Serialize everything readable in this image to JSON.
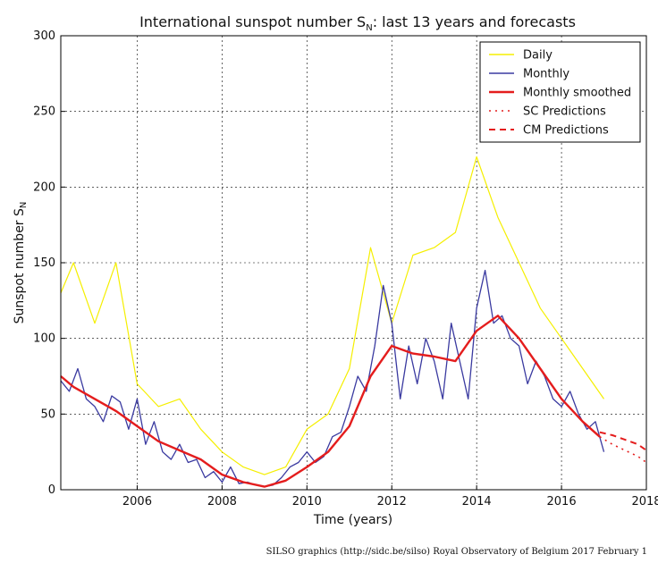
{
  "chart_data": {
    "type": "line",
    "title": "International sunspot number S",
    "title_subscript": "N",
    "title_suffix": ": last 13 years and forecasts",
    "xlabel": "Time (years)",
    "ylabel": "Sunspot number S",
    "ylabel_subscript": "N",
    "xlim": [
      2004.2,
      2018.0
    ],
    "ylim": [
      0,
      300
    ],
    "xticks": [
      2006,
      2008,
      2010,
      2012,
      2014,
      2016,
      2018
    ],
    "yticks": [
      0,
      50,
      100,
      150,
      200,
      250,
      300
    ],
    "legend_position": "top-right",
    "grid": true,
    "series": [
      {
        "name": "Daily",
        "color": "#f5ef00",
        "style": "solid",
        "x": [
          2004.2,
          2004.5,
          2005.0,
          2005.5,
          2006.0,
          2006.5,
          2007.0,
          2007.5,
          2008.0,
          2008.5,
          2009.0,
          2009.5,
          2010.0,
          2010.5,
          2011.0,
          2011.5,
          2012.0,
          2012.5,
          2013.0,
          2013.5,
          2014.0,
          2014.5,
          2015.0,
          2015.5,
          2016.0,
          2016.5,
          2017.0
        ],
        "values": [
          130,
          150,
          110,
          150,
          70,
          55,
          60,
          40,
          25,
          15,
          10,
          15,
          40,
          50,
          80,
          160,
          110,
          155,
          160,
          170,
          220,
          180,
          150,
          120,
          100,
          80,
          60
        ]
      },
      {
        "name": "Monthly",
        "color": "#3a3aa0",
        "style": "solid",
        "x": [
          2004.2,
          2004.4,
          2004.6,
          2004.8,
          2005.0,
          2005.2,
          2005.4,
          2005.6,
          2005.8,
          2006.0,
          2006.2,
          2006.4,
          2006.6,
          2006.8,
          2007.0,
          2007.2,
          2007.4,
          2007.6,
          2007.8,
          2008.0,
          2008.2,
          2008.4,
          2008.6,
          2008.8,
          2009.0,
          2009.2,
          2009.4,
          2009.6,
          2009.8,
          2010.0,
          2010.2,
          2010.4,
          2010.6,
          2010.8,
          2011.0,
          2011.2,
          2011.4,
          2011.6,
          2011.8,
          2012.0,
          2012.2,
          2012.4,
          2012.6,
          2012.8,
          2013.0,
          2013.2,
          2013.4,
          2013.6,
          2013.8,
          2014.0,
          2014.2,
          2014.4,
          2014.6,
          2014.8,
          2015.0,
          2015.2,
          2015.4,
          2015.6,
          2015.8,
          2016.0,
          2016.2,
          2016.4,
          2016.6,
          2016.8,
          2017.0
        ],
        "values": [
          72,
          65,
          80,
          60,
          55,
          45,
          62,
          58,
          40,
          60,
          30,
          45,
          25,
          20,
          30,
          18,
          20,
          8,
          12,
          5,
          15,
          4,
          5,
          3,
          2,
          3,
          8,
          15,
          18,
          25,
          18,
          22,
          35,
          38,
          55,
          75,
          65,
          95,
          135,
          110,
          60,
          95,
          70,
          100,
          85,
          60,
          110,
          85,
          60,
          120,
          145,
          110,
          115,
          100,
          95,
          70,
          85,
          75,
          60,
          55,
          65,
          50,
          40,
          45,
          25
        ]
      },
      {
        "name": "Monthly smoothed",
        "color": "#e41d1d",
        "style": "solid",
        "x": [
          2004.2,
          2004.5,
          2005.0,
          2005.5,
          2006.0,
          2006.5,
          2007.0,
          2007.5,
          2008.0,
          2008.5,
          2009.0,
          2009.5,
          2010.0,
          2010.5,
          2011.0,
          2011.5,
          2012.0,
          2012.5,
          2013.0,
          2013.5,
          2014.0,
          2014.5,
          2015.0,
          2015.5,
          2016.0,
          2016.5,
          2016.9
        ],
        "values": [
          75,
          68,
          60,
          52,
          42,
          32,
          26,
          20,
          10,
          5,
          2,
          6,
          15,
          25,
          42,
          75,
          95,
          90,
          88,
          85,
          105,
          115,
          100,
          80,
          60,
          45,
          35
        ]
      },
      {
        "name": "SC Predictions",
        "color": "#e41d1d",
        "style": "dotted",
        "x": [
          2016.9,
          2017.2,
          2017.5,
          2017.8,
          2018.0
        ],
        "values": [
          35,
          30,
          26,
          22,
          18
        ]
      },
      {
        "name": "CM Predictions",
        "color": "#e41d1d",
        "style": "dashed",
        "x": [
          2016.9,
          2017.2,
          2017.5,
          2017.8,
          2018.0
        ],
        "values": [
          38,
          36,
          33,
          30,
          26
        ]
      }
    ]
  },
  "footer": {
    "credit": "SILSO graphics (http://sidc.be/silso)  Royal Observatory of Belgium  2017 February 1"
  }
}
